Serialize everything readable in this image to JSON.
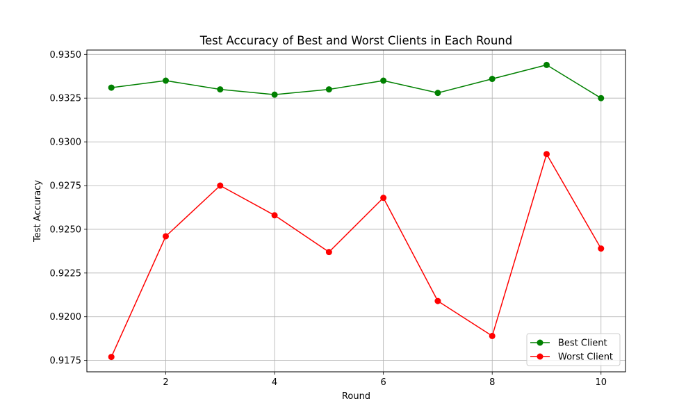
{
  "chart_data": {
    "type": "line",
    "title": "Test Accuracy of Best and Worst Clients in Each Round",
    "xlabel": "Round",
    "ylabel": "Test Accuracy",
    "x": [
      1,
      2,
      3,
      4,
      5,
      6,
      7,
      8,
      9,
      10
    ],
    "xlim": [
      0.55,
      10.45
    ],
    "ylim": [
      0.91685,
      0.93525
    ],
    "xticks": [
      2,
      4,
      6,
      8,
      10
    ],
    "xtick_labels": [
      "2",
      "4",
      "6",
      "8",
      "10"
    ],
    "yticks": [
      0.9175,
      0.92,
      0.9225,
      0.925,
      0.9275,
      0.93,
      0.9325,
      0.935
    ],
    "ytick_labels": [
      "0.9175",
      "0.9200",
      "0.9225",
      "0.9250",
      "0.9275",
      "0.9300",
      "0.9325",
      "0.9350"
    ],
    "grid": true,
    "legend_position": "lower-right",
    "series": [
      {
        "name": "Best Client",
        "color": "#008000",
        "marker": "circle",
        "values": [
          0.9331,
          0.9335,
          0.933,
          0.9327,
          0.933,
          0.9335,
          0.9328,
          0.9336,
          0.9344,
          0.9325
        ]
      },
      {
        "name": "Worst Client",
        "color": "#ff0000",
        "marker": "circle",
        "values": [
          0.9177,
          0.9246,
          0.9275,
          0.9258,
          0.9237,
          0.9268,
          0.9209,
          0.9189,
          0.9293,
          0.9239
        ]
      }
    ]
  }
}
